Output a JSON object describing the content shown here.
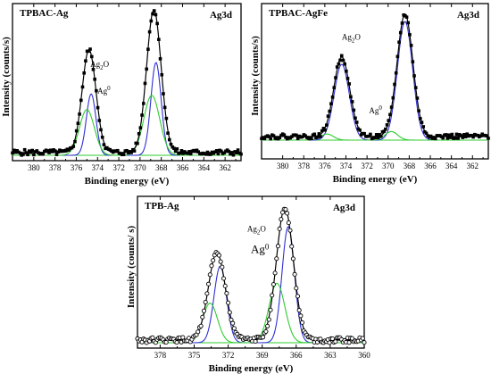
{
  "chart_data": [
    {
      "type": "line",
      "title": "TPBAC-Ag",
      "subtitle": "Ag3d",
      "xlabel": "Binding energy (eV)",
      "ylabel": "Intensity (counts/s)",
      "xlim": [
        382,
        360.5
      ],
      "x_ticks": [
        380,
        378,
        376,
        374,
        372,
        370,
        368,
        366,
        364,
        362
      ],
      "ylim": [
        0,
        1
      ],
      "annotations": [
        {
          "text": "Ag",
          "sub": "2",
          "tail": "O",
          "x": 373.8,
          "y": 0.62
        },
        {
          "text": "Ag",
          "sup": "0",
          "x": 373.4,
          "y": 0.43
        }
      ],
      "series": [
        {
          "role": "data",
          "peaks": [
            {
              "x": 374.8,
              "h": 0.72,
              "w": 0.65
            },
            {
              "x": 368.7,
              "h": 1.0,
              "w": 0.68
            }
          ],
          "baseline": 0.02,
          "color": "#000000"
        },
        {
          "role": "Ag2O",
          "peaks": [
            {
              "x": 374.6,
              "h": 0.43,
              "w": 0.45
            },
            {
              "x": 368.5,
              "h": 0.65,
              "w": 0.48
            }
          ],
          "color": "#2f2fd6"
        },
        {
          "role": "Ag0",
          "peaks": [
            {
              "x": 375.0,
              "h": 0.32,
              "w": 0.7
            },
            {
              "x": 368.9,
              "h": 0.42,
              "w": 0.75
            }
          ],
          "color": "#2fcc2f"
        },
        {
          "role": "fit",
          "peaks": [
            {
              "x": 374.8,
              "h": 0.72,
              "w": 0.65
            },
            {
              "x": 368.7,
              "h": 1.0,
              "w": 0.68
            }
          ],
          "baseline": 0.02,
          "color": "#000000"
        }
      ]
    },
    {
      "type": "line",
      "title": "TPBAC-AgFe",
      "subtitle": "Ag3d",
      "xlabel": "Binding energy (eV)",
      "ylabel": "Intensity (counts/s)",
      "xlim": [
        382,
        360.5
      ],
      "x_ticks": [
        380,
        378,
        376,
        374,
        372,
        370,
        368,
        366,
        364,
        362
      ],
      "ylim": [
        0,
        1
      ],
      "annotations": [
        {
          "text": "Ag",
          "sub": "2",
          "tail": "O",
          "x": 373.5,
          "y": 0.82
        },
        {
          "text": "Ag",
          "sup": "0",
          "x": 371.2,
          "y": 0.22
        }
      ],
      "series": [
        {
          "role": "data",
          "peaks": [
            {
              "x": 374.4,
              "h": 0.65,
              "w": 0.75
            },
            {
              "x": 368.4,
              "h": 1.0,
              "w": 0.75
            }
          ],
          "baseline": 0.03,
          "color": "#000000"
        },
        {
          "role": "Ag2O",
          "peaks": [
            {
              "x": 374.4,
              "h": 0.62,
              "w": 0.72
            },
            {
              "x": 368.4,
              "h": 0.97,
              "w": 0.72
            }
          ],
          "color": "#2f2fd6"
        },
        {
          "role": "Ag0",
          "peaks": [
            {
              "x": 375.8,
              "h": 0.05,
              "w": 0.6
            },
            {
              "x": 369.7,
              "h": 0.07,
              "w": 0.6
            }
          ],
          "color": "#2fcc2f"
        },
        {
          "role": "fit",
          "peaks": [
            {
              "x": 374.4,
              "h": 0.65,
              "w": 0.75
            },
            {
              "x": 368.4,
              "h": 1.0,
              "w": 0.75
            }
          ],
          "baseline": 0.03,
          "color": "#000000"
        }
      ]
    },
    {
      "type": "line",
      "title": "TPB-Ag",
      "subtitle": "Ag3d",
      "xlabel": "Binding energy (eV)",
      "ylabel": "Intensity (counts/ s)",
      "xlim": [
        380,
        360
      ],
      "x_ticks": [
        378,
        375,
        372,
        369,
        366,
        363,
        360
      ],
      "ylim": [
        0,
        1
      ],
      "annotations": [
        {
          "text": "Ag",
          "sub": "2",
          "tail": "O",
          "x": 369.5,
          "y": 0.84
        },
        {
          "text": "Ag",
          "sup": "0",
          "x": 369.2,
          "y": 0.68
        }
      ],
      "series": [
        {
          "role": "data",
          "peaks": [
            {
              "x": 373.0,
              "h": 0.66,
              "w": 0.75
            },
            {
              "x": 367.0,
              "h": 1.0,
              "w": 0.75
            }
          ],
          "baseline": 0.02,
          "color": "#000000"
        },
        {
          "role": "Ag2O",
          "peaks": [
            {
              "x": 372.7,
              "h": 0.58,
              "w": 0.55
            },
            {
              "x": 366.7,
              "h": 0.88,
              "w": 0.55
            }
          ],
          "color": "#2f2fd6"
        },
        {
          "role": "Ag0",
          "peaks": [
            {
              "x": 373.6,
              "h": 0.3,
              "w": 0.65
            },
            {
              "x": 367.7,
              "h": 0.45,
              "w": 0.7
            }
          ],
          "color": "#2fcc2f"
        },
        {
          "role": "fit",
          "peaks": [
            {
              "x": 373.0,
              "h": 0.66,
              "w": 0.75
            },
            {
              "x": 367.0,
              "h": 1.0,
              "w": 0.75
            }
          ],
          "baseline": 0.02,
          "color": "#000000"
        }
      ]
    }
  ]
}
